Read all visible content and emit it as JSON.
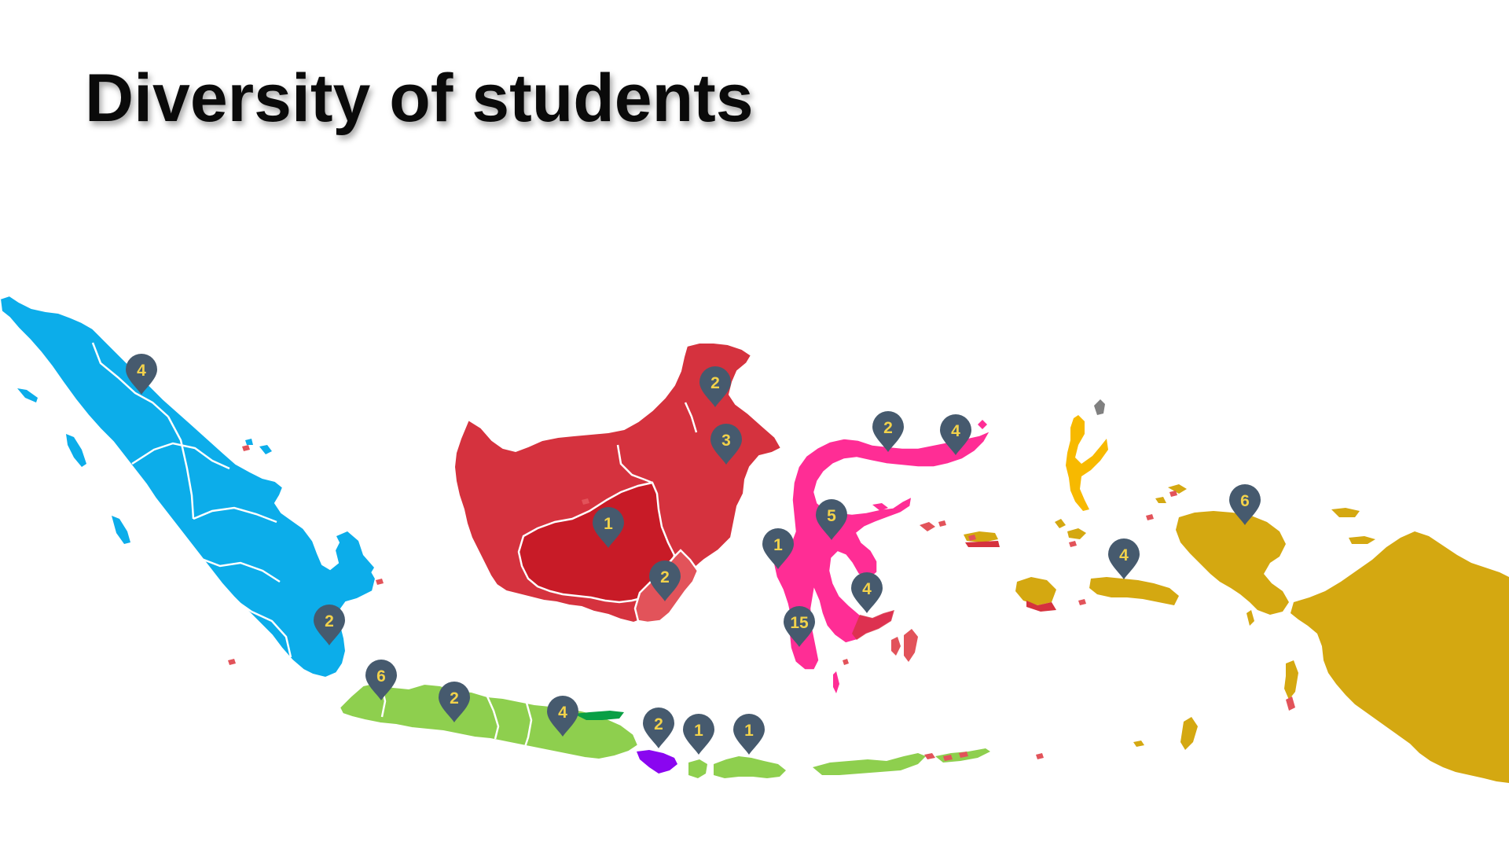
{
  "title": "Diversity of students",
  "colors": {
    "sumatra": "#0cadea",
    "kalimantan": "#d5323e",
    "kalimantan_center": "#c81b27",
    "kalimantan_south": "#e2535a",
    "sulawesi": "#ff2d95",
    "maluku": "#f7b900",
    "papua": "#d4a811",
    "java": "#8ecf4e",
    "bali": "#8a06f0",
    "pin": "#465a6e",
    "pin_text": "#f2d24b"
  },
  "regions": [
    {
      "name": "Sumatra"
    },
    {
      "name": "Java"
    },
    {
      "name": "Bali"
    },
    {
      "name": "Nusa Tenggara"
    },
    {
      "name": "Kalimantan"
    },
    {
      "name": "Sulawesi"
    },
    {
      "name": "Maluku"
    },
    {
      "name": "Papua"
    }
  ],
  "markers": [
    {
      "id": "north-sumatra",
      "count": "4"
    },
    {
      "id": "lampung",
      "count": "2"
    },
    {
      "id": "west-java",
      "count": "6"
    },
    {
      "id": "central-java",
      "count": "2"
    },
    {
      "id": "east-java",
      "count": "4"
    },
    {
      "id": "bali",
      "count": "2"
    },
    {
      "id": "west-nusa-tenggara",
      "count": "1"
    },
    {
      "id": "sumbawa",
      "count": "1"
    },
    {
      "id": "north-kalimantan",
      "count": "2"
    },
    {
      "id": "east-kalimantan",
      "count": "3"
    },
    {
      "id": "central-kalimantan",
      "count": "1"
    },
    {
      "id": "south-kalimantan",
      "count": "2"
    },
    {
      "id": "gorontalo",
      "count": "2"
    },
    {
      "id": "north-sulawesi",
      "count": "4"
    },
    {
      "id": "central-sulawesi",
      "count": "5"
    },
    {
      "id": "west-sulawesi",
      "count": "1"
    },
    {
      "id": "southeast-sulawesi",
      "count": "4"
    },
    {
      "id": "south-sulawesi",
      "count": "15"
    },
    {
      "id": "maluku",
      "count": "4"
    },
    {
      "id": "west-papua",
      "count": "6"
    }
  ]
}
